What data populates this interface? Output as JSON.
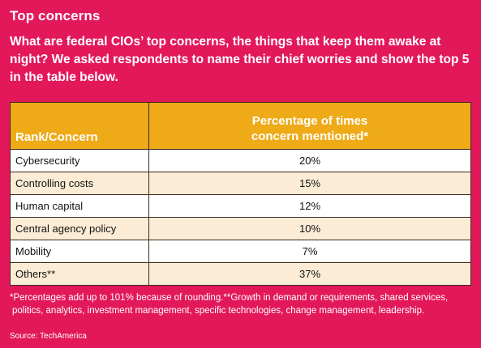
{
  "title": "Top concerns",
  "intro": "What are federal CIOs’ top concerns, the things that keep them awake at night? We asked respondents to name their chief worries and show the top 5 in the table below.",
  "table": {
    "header_rank": "Rank/Concern",
    "header_pct_line1": "Percentage of times",
    "header_pct_line2": "concern mentioned*",
    "rows": [
      {
        "concern": "Cybersecurity",
        "pct": "20%"
      },
      {
        "concern": "Controlling costs",
        "pct": "15%"
      },
      {
        "concern": "Human capital",
        "pct": "12%"
      },
      {
        "concern": "Central agency policy",
        "pct": "10%"
      },
      {
        "concern": "Mobility",
        "pct": "7%"
      },
      {
        "concern": "Others**",
        "pct": "37%"
      }
    ]
  },
  "footnote_line1": "*Percentages add up to 101% because of rounding.**Growth in demand or requirements, shared services,",
  "footnote_line2": "politics, analytics, investment management, specific technologies, change management, leadership.",
  "source": "Source: TechAmerica",
  "colors": {
    "background": "#e3185a",
    "header": "#eeaa17",
    "row_alt": "#fcecd6"
  }
}
